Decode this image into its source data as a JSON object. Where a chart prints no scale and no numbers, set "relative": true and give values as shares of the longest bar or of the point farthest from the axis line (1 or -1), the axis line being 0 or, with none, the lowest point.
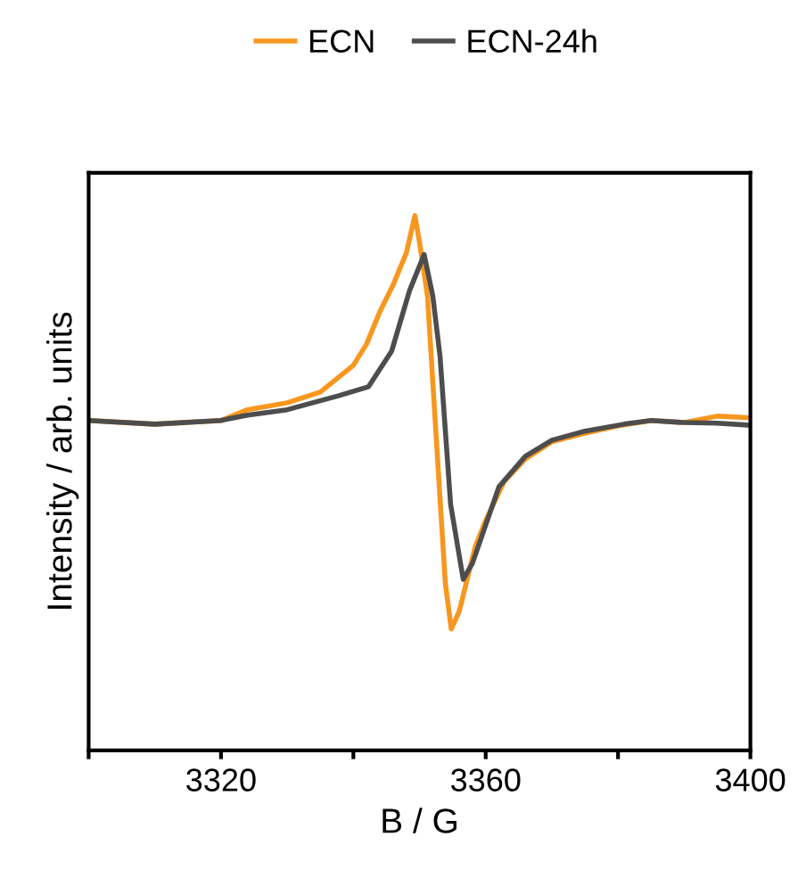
{
  "chart_data": {
    "type": "line",
    "xlabel": "B / G",
    "ylabel": "Intensity / arb. units",
    "relative": true,
    "xlim": [
      3300,
      3400
    ],
    "xticks": [
      {
        "value": 3300,
        "label": null
      },
      3320,
      {
        "value": 3340,
        "label": null
      },
      3360,
      {
        "value": 3380,
        "label": null
      },
      3400
    ],
    "tick_labels": "x",
    "legend": "top",
    "grid": false,
    "marker": "none",
    "line_style": "solid",
    "series": [
      {
        "name": "ECN",
        "color": "#f7971f",
        "x": [
          3300,
          3310,
          3320,
          3324,
          3330,
          3335,
          3338,
          3340,
          3342,
          3344,
          3346,
          3348,
          3349.3,
          3350,
          3351.2,
          3352.6,
          3353.9,
          3354.8,
          3356,
          3358.4,
          3360,
          3362.8,
          3366,
          3370,
          3375,
          3380,
          3385,
          3390,
          3395,
          3400
        ],
        "values": [
          0.617,
          0.61,
          0.617,
          0.637,
          0.65,
          0.67,
          0.7,
          0.72,
          0.76,
          0.82,
          0.87,
          0.93,
          1.0,
          0.95,
          0.85,
          0.57,
          0.313,
          0.227,
          0.26,
          0.38,
          0.43,
          0.503,
          0.545,
          0.577,
          0.593,
          0.607,
          0.617,
          0.613,
          0.625,
          0.622
        ]
      },
      {
        "name": "ECN-24h",
        "color": "#4d4d4d",
        "x": [
          3300,
          3310,
          3320,
          3324,
          3330,
          3337.7,
          3342.3,
          3345.8,
          3348.5,
          3350.7,
          3352,
          3353.1,
          3354.7,
          3356.6,
          3358,
          3362,
          3366,
          3370,
          3375,
          3380.9,
          3385,
          3390,
          3395,
          3400
        ],
        "values": [
          0.617,
          0.61,
          0.617,
          0.627,
          0.637,
          0.663,
          0.68,
          0.747,
          0.86,
          0.927,
          0.85,
          0.737,
          0.46,
          0.32,
          0.35,
          0.493,
          0.55,
          0.58,
          0.597,
          0.61,
          0.617,
          0.613,
          0.612,
          0.608
        ]
      }
    ]
  }
}
